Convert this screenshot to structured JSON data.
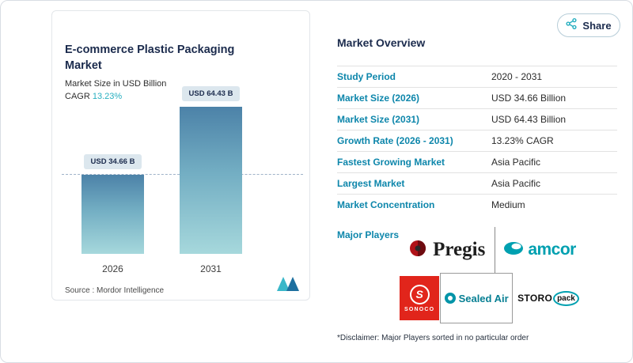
{
  "page": {
    "share_label": "Share"
  },
  "chart_card": {
    "title": "E-commerce Plastic Packaging Market",
    "subtitle": "Market Size in USD Billion",
    "cagr_label": "CAGR",
    "cagr_value": "13.23%",
    "source_label": "Source :",
    "source_value": "Mordor Intelligence"
  },
  "chart_data": {
    "type": "bar",
    "title": "E-commerce Plastic Packaging Market",
    "ylabel": "Market Size in USD Billion",
    "categories": [
      "2026",
      "2031"
    ],
    "values": [
      34.66,
      64.43
    ],
    "value_labels": [
      "USD 34.66 B",
      "USD 64.43 B"
    ],
    "ylim": [
      0,
      70
    ],
    "reference_line": 34.66,
    "cagr": "13.23%",
    "legend": "none",
    "grid": "off"
  },
  "overview": {
    "title": "Market Overview",
    "rows": [
      {
        "label": "Study Period",
        "value": "2020 - 2031"
      },
      {
        "label": "Market Size (2026)",
        "value": "USD 34.66 Billion"
      },
      {
        "label": "Market Size (2031)",
        "value": "USD 64.43 Billion"
      },
      {
        "label": "Growth Rate (2026 - 2031)",
        "value": "13.23% CAGR"
      },
      {
        "label": "Fastest Growing Market",
        "value": "Asia Pacific"
      },
      {
        "label": "Largest Market",
        "value": "Asia Pacific"
      },
      {
        "label": "Market Concentration",
        "value": "Medium"
      }
    ],
    "major_players_label": "Major Players",
    "players": [
      {
        "name": "Pregis"
      },
      {
        "name": "amcor"
      },
      {
        "name": "SONOCO",
        "initial": "S"
      },
      {
        "name": "Sealed Air"
      },
      {
        "name": "STOROpack",
        "part1": "STORO",
        "part2": "pack"
      }
    ],
    "disclaimer": "*Disclaimer: Major Players sorted in no particular order"
  },
  "colors": {
    "accent_teal": "#27afc0",
    "label_blue": "#0d86ab",
    "navy": "#1b2b4d",
    "bar_gradient_top": "#4c82a8",
    "bar_gradient_bottom": "#a6d8dc",
    "sonoco_red": "#e1251b",
    "amcor_teal": "#00a0b0"
  }
}
